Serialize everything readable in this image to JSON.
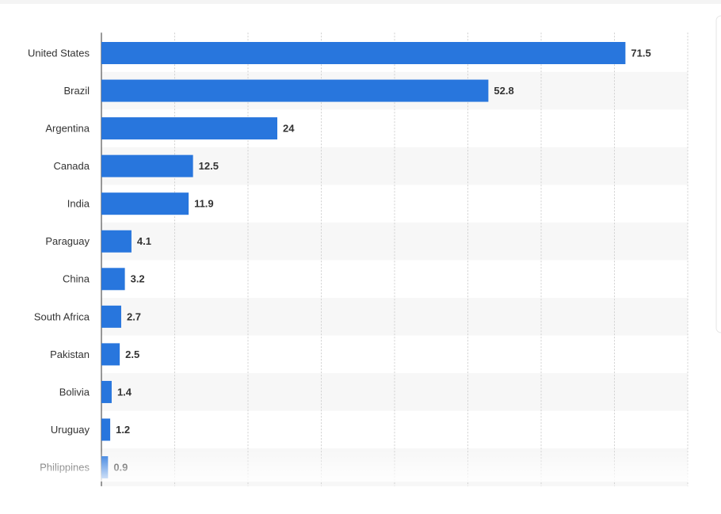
{
  "chart_data": {
    "type": "bar",
    "orientation": "horizontal",
    "categories": [
      "United States",
      "Brazil",
      "Argentina",
      "Canada",
      "India",
      "Paraguay",
      "China",
      "South Africa",
      "Pakistan",
      "Bolivia",
      "Uruguay",
      "Philippines"
    ],
    "values": [
      71.5,
      52.8,
      24,
      12.5,
      11.9,
      4.1,
      3.2,
      2.7,
      2.5,
      1.4,
      1.2,
      0.9
    ],
    "color": "#2876dd",
    "xlim": [
      0,
      80
    ],
    "xticks": [
      0,
      10,
      20,
      30,
      40,
      50,
      60,
      70,
      80
    ],
    "grid": true
  }
}
